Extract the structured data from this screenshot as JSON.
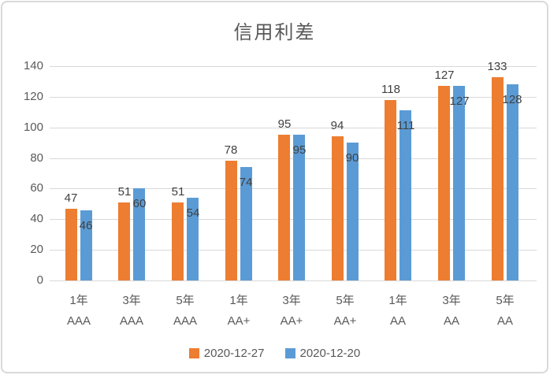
{
  "chart_data": {
    "type": "bar",
    "title": "信用利差",
    "categories": [
      {
        "term": "1年",
        "rating": "AAA"
      },
      {
        "term": "3年",
        "rating": "AAA"
      },
      {
        "term": "5年",
        "rating": "AAA"
      },
      {
        "term": "1年",
        "rating": "AA+"
      },
      {
        "term": "3年",
        "rating": "AA+"
      },
      {
        "term": "5年",
        "rating": "AA+"
      },
      {
        "term": "1年",
        "rating": "AA"
      },
      {
        "term": "3年",
        "rating": "AA"
      },
      {
        "term": "5年",
        "rating": "AA"
      }
    ],
    "series": [
      {
        "name": "2020-12-27",
        "color": "#ED7D31",
        "values": [
          47,
          51,
          51,
          78,
          95,
          94,
          118,
          127,
          133
        ],
        "data_label_position": "outside-end"
      },
      {
        "name": "2020-12-20",
        "color": "#5B9BD5",
        "values": [
          46,
          60,
          54,
          74,
          95,
          90,
          111,
          127,
          128
        ],
        "data_label_position": "inside-end"
      }
    ],
    "xlabel": "",
    "ylabel": "",
    "ylim": [
      0,
      140
    ],
    "yticks": [
      0,
      20,
      40,
      60,
      80,
      100,
      120,
      140
    ],
    "grid": true,
    "legend_position": "bottom"
  },
  "colors": {
    "gridline": "#D9D9D9",
    "axis_text": "#595959",
    "data_label": "#404040",
    "title_text": "#595959",
    "card_border": "#D9D9D9",
    "background": "#FFFFFF"
  }
}
